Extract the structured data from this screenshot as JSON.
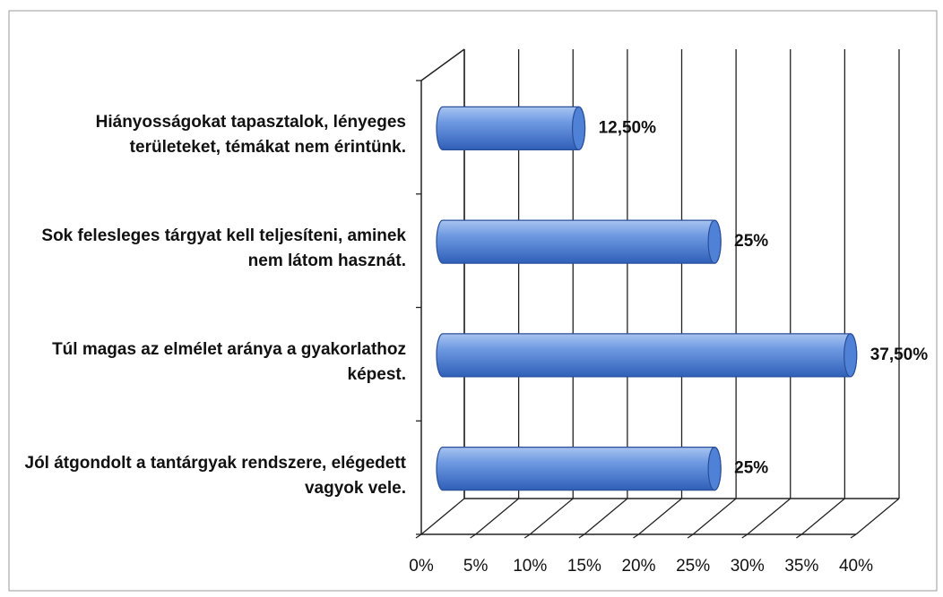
{
  "chart_data": {
    "type": "bar3d-horizontal",
    "categories": [
      "Hiányosságokat tapasztalok, lényeges területeket, témákat nem érintünk.",
      "Sok felesleges tárgyat kell teljesíteni, aminek nem látom hasznát.",
      "Túl magas az elmélet aránya a gyakorlathoz képest.",
      "Jól átgondolt a tantárgyak rendszere, elégedett vagyok vele."
    ],
    "values": [
      12.5,
      25,
      37.5,
      25
    ],
    "value_labels": [
      "12,50%",
      "25%",
      "37,50%",
      "25%"
    ],
    "color": "#4f81d6",
    "xlim": [
      0,
      40
    ],
    "xticks": [
      {
        "value": 0,
        "label": "0%"
      },
      {
        "value": 5,
        "label": "5%"
      },
      {
        "value": 10,
        "label": "10%"
      },
      {
        "value": 15,
        "label": "15%"
      },
      {
        "value": 20,
        "label": "20%"
      },
      {
        "value": 25,
        "label": "25%"
      },
      {
        "value": 30,
        "label": "30%"
      },
      {
        "value": 35,
        "label": "35%"
      },
      {
        "value": 40,
        "label": "40%"
      }
    ],
    "grid": true
  }
}
